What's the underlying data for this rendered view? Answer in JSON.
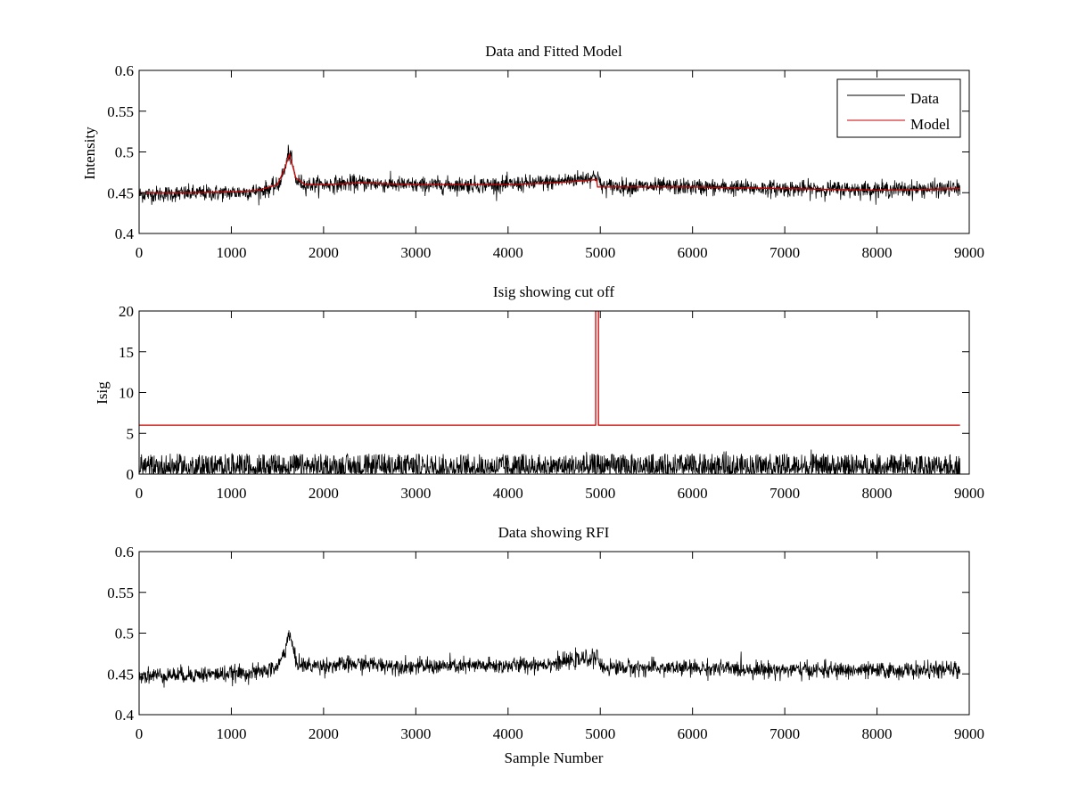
{
  "chart_data": [
    {
      "type": "line",
      "title": "Data and Fitted Model",
      "xlabel": "",
      "ylabel": "Intensity",
      "xlim": [
        0,
        9000
      ],
      "ylim": [
        0.4,
        0.6
      ],
      "xticks": [
        0,
        1000,
        2000,
        3000,
        4000,
        5000,
        6000,
        7000,
        8000,
        9000
      ],
      "yticks": [
        0.4,
        0.45,
        0.5,
        0.55,
        0.6
      ],
      "ytick_labels": [
        "0.4",
        "0.45",
        "0.5",
        "0.55",
        "0.6"
      ],
      "grid": false,
      "legend": "top-right",
      "series": [
        {
          "name": "Data",
          "color": "#000000",
          "noise": 0.005,
          "x": [
            0,
            500,
            1000,
            1300,
            1500,
            1580,
            1620,
            1650,
            1700,
            1800,
            2000,
            2400,
            3000,
            4000,
            4500,
            4950,
            4980,
            5000,
            6000,
            7000,
            8000,
            8900
          ],
          "y": [
            0.448,
            0.449,
            0.45,
            0.452,
            0.458,
            0.478,
            0.5,
            0.49,
            0.465,
            0.46,
            0.46,
            0.462,
            0.459,
            0.46,
            0.463,
            0.47,
            0.47,
            0.458,
            0.457,
            0.455,
            0.454,
            0.455
          ]
        },
        {
          "name": "Model",
          "color": "#cc0000",
          "noise": 0,
          "x": [
            0,
            500,
            1000,
            1300,
            1500,
            1580,
            1630,
            1700,
            1800,
            2000,
            2400,
            3000,
            4000,
            4500,
            4960,
            4970,
            6000,
            7000,
            8000,
            8900
          ],
          "y": [
            0.45,
            0.45,
            0.451,
            0.453,
            0.46,
            0.48,
            0.497,
            0.468,
            0.46,
            0.46,
            0.462,
            0.46,
            0.46,
            0.462,
            0.466,
            0.457,
            0.457,
            0.455,
            0.453,
            0.455
          ]
        }
      ]
    },
    {
      "type": "line",
      "title": "Isig showing cut off",
      "xlabel": "",
      "ylabel": "Isig",
      "xlim": [
        0,
        9000
      ],
      "ylim": [
        0,
        20
      ],
      "xticks": [
        0,
        1000,
        2000,
        3000,
        4000,
        5000,
        6000,
        7000,
        8000,
        9000
      ],
      "yticks": [
        0,
        5,
        10,
        15,
        20
      ],
      "ytick_labels": [
        "0",
        "5",
        "10",
        "15",
        "20"
      ],
      "grid": false,
      "series": [
        {
          "color": "#000000",
          "noise_range": [
            0,
            2.5
          ],
          "x": [
            0,
            8900
          ],
          "y": [
            0.8,
            0.8
          ]
        },
        {
          "color": "#cc0000",
          "noise": 0,
          "x": [
            0,
            4950,
            4950,
            4980,
            4980,
            8900
          ],
          "y": [
            6,
            6,
            20,
            20,
            6,
            6
          ]
        }
      ]
    },
    {
      "type": "line",
      "title": "Data showing RFI",
      "xlabel": "Sample Number",
      "ylabel": "",
      "xlim": [
        0,
        9000
      ],
      "ylim": [
        0.4,
        0.6
      ],
      "xticks": [
        0,
        1000,
        2000,
        3000,
        4000,
        5000,
        6000,
        7000,
        8000,
        9000
      ],
      "yticks": [
        0.4,
        0.45,
        0.5,
        0.55,
        0.6
      ],
      "ytick_labels": [
        "0.4",
        "0.45",
        "0.5",
        "0.55",
        "0.6"
      ],
      "grid": false,
      "series": [
        {
          "color": "#000000",
          "noise": 0.005,
          "x": [
            0,
            500,
            1000,
            1300,
            1500,
            1580,
            1620,
            1650,
            1700,
            1800,
            2000,
            2400,
            3000,
            4000,
            4500,
            4950,
            4980,
            5000,
            6000,
            7000,
            8000,
            8900
          ],
          "y": [
            0.448,
            0.449,
            0.45,
            0.452,
            0.458,
            0.478,
            0.5,
            0.49,
            0.465,
            0.46,
            0.46,
            0.462,
            0.459,
            0.46,
            0.463,
            0.47,
            0.47,
            0.458,
            0.457,
            0.455,
            0.454,
            0.455
          ]
        }
      ]
    }
  ]
}
